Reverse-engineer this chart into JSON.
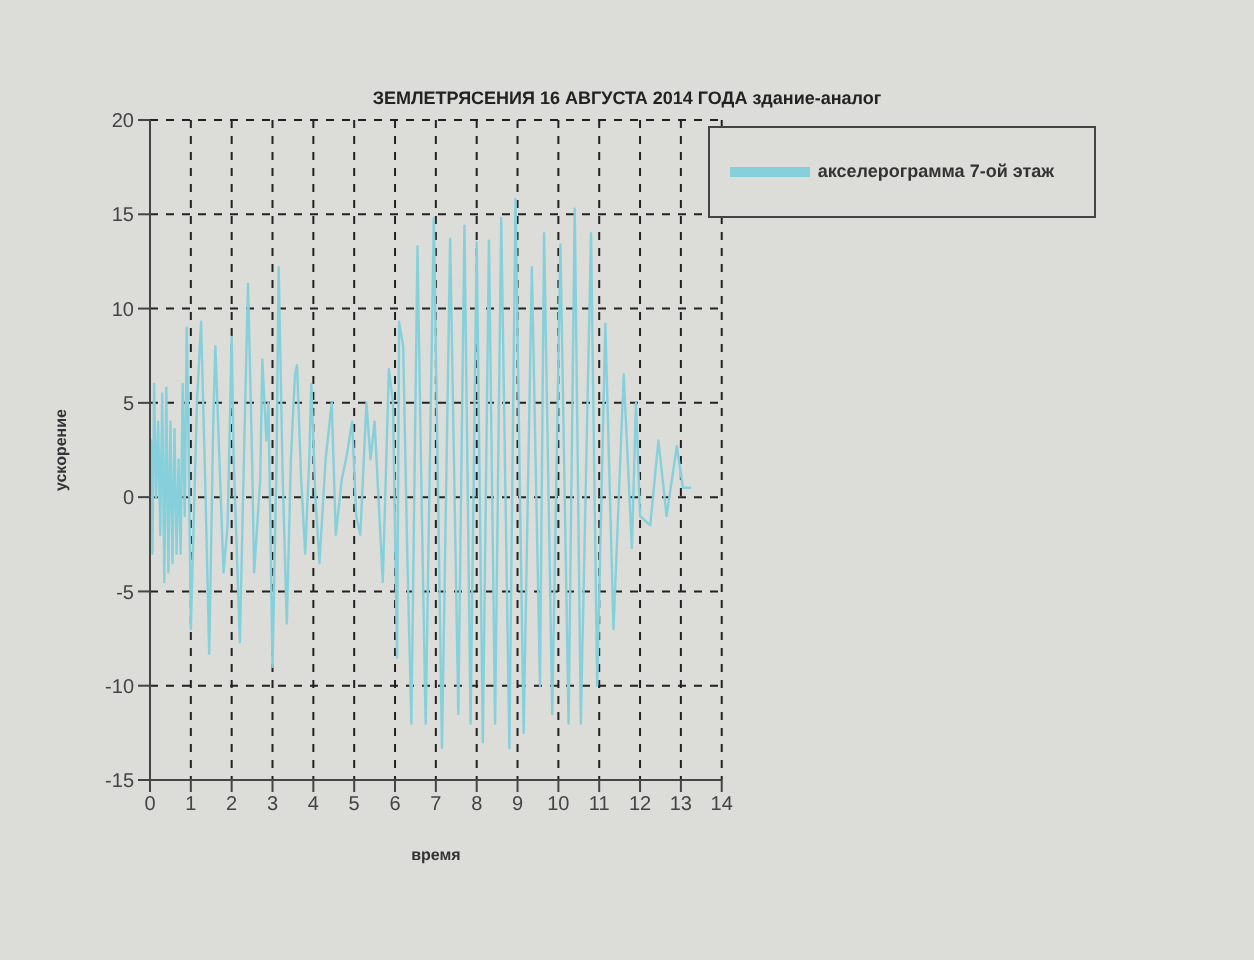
{
  "chart_data": {
    "type": "line",
    "title": "ЗЕМЛЕТРЯСЕНИЯ  16 АВГУСТА 2014 ГОДА здание-аналог",
    "xlabel": "время",
    "ylabel": "ускорение",
    "xlim": [
      0,
      14
    ],
    "xticks": [
      0,
      1,
      2,
      3,
      4,
      5,
      6,
      7,
      8,
      9,
      10,
      11,
      12,
      13,
      14
    ],
    "ylim": [
      -15,
      20
    ],
    "yticks": [
      -15,
      -10,
      -5,
      0,
      5,
      10,
      15,
      20
    ],
    "grid": true,
    "legend": "top right",
    "line_style": "solid",
    "marker": "none",
    "series": [
      {
        "name": "акселерограмма 7-ой этаж",
        "color": "#86d0dc",
        "x": [
          0,
          0.03,
          0.06,
          0.1,
          0.15,
          0.2,
          0.25,
          0.3,
          0.35,
          0.4,
          0.45,
          0.5,
          0.55,
          0.6,
          0.65,
          0.7,
          0.75,
          0.8,
          0.85,
          0.9,
          0.95,
          1.0,
          1.05,
          1.15,
          1.25,
          1.35,
          1.45,
          1.55,
          1.6,
          1.7,
          1.8,
          1.9,
          2.0,
          2.05,
          2.2,
          2.3,
          2.4,
          2.5,
          2.55,
          2.7,
          2.75,
          2.85,
          2.9,
          3.0,
          3.1,
          3.15,
          3.25,
          3.35,
          3.45,
          3.55,
          3.6,
          3.7,
          3.8,
          3.9,
          3.95,
          4.05,
          4.15,
          4.3,
          4.45,
          4.55,
          4.7,
          4.8,
          4.95,
          5.05,
          5.15,
          5.3,
          5.4,
          5.5,
          5.7,
          5.85,
          5.95,
          6.05,
          6.1,
          6.2,
          6.3,
          6.4,
          6.55,
          6.65,
          6.75,
          6.95,
          7.15,
          7.35,
          7.55,
          7.7,
          7.85,
          8.0,
          8.15,
          8.3,
          8.45,
          8.6,
          8.8,
          8.95,
          9.15,
          9.35,
          9.55,
          9.65,
          9.85,
          10.05,
          10.25,
          10.4,
          10.55,
          10.8,
          10.95,
          11.15,
          11.35,
          11.6,
          11.8,
          11.9,
          12.0,
          12.25,
          12.45,
          12.65,
          12.9,
          13.05,
          13.25
        ],
        "values": [
          0,
          3,
          -3,
          6,
          0,
          4,
          -2,
          5.5,
          -4.5,
          5.8,
          -4,
          4,
          -3.5,
          3.6,
          -3,
          2,
          -3,
          6,
          -1,
          9,
          2,
          -7,
          -3,
          5,
          9.3,
          1,
          -8.3,
          4,
          8,
          2,
          -4,
          -1.5,
          8.5,
          2,
          -7.7,
          2,
          11.3,
          2,
          -4,
          1,
          7.3,
          3,
          5,
          -9,
          2,
          12.2,
          1,
          -6.7,
          2,
          6.5,
          7,
          1,
          -3,
          2,
          6,
          0,
          -3.5,
          2,
          5,
          -2,
          1,
          2,
          4,
          -1,
          -2,
          5,
          2,
          4,
          -4.5,
          6.8,
          5,
          -8.5,
          9.3,
          8,
          -3,
          -12,
          13.3,
          0,
          -12,
          14.8,
          -13.3,
          13.7,
          -11.5,
          14.4,
          -12,
          13.5,
          -13,
          13.6,
          -12,
          14.8,
          -13.3,
          15.8,
          -12.5,
          12.2,
          -10,
          14,
          -11.5,
          13.4,
          -12,
          15.3,
          -12,
          14,
          -10,
          9.2,
          -7,
          6.5,
          -2.7,
          5,
          -1,
          -1.5,
          3,
          -1,
          2.7,
          0.5,
          0.5
        ]
      }
    ]
  }
}
